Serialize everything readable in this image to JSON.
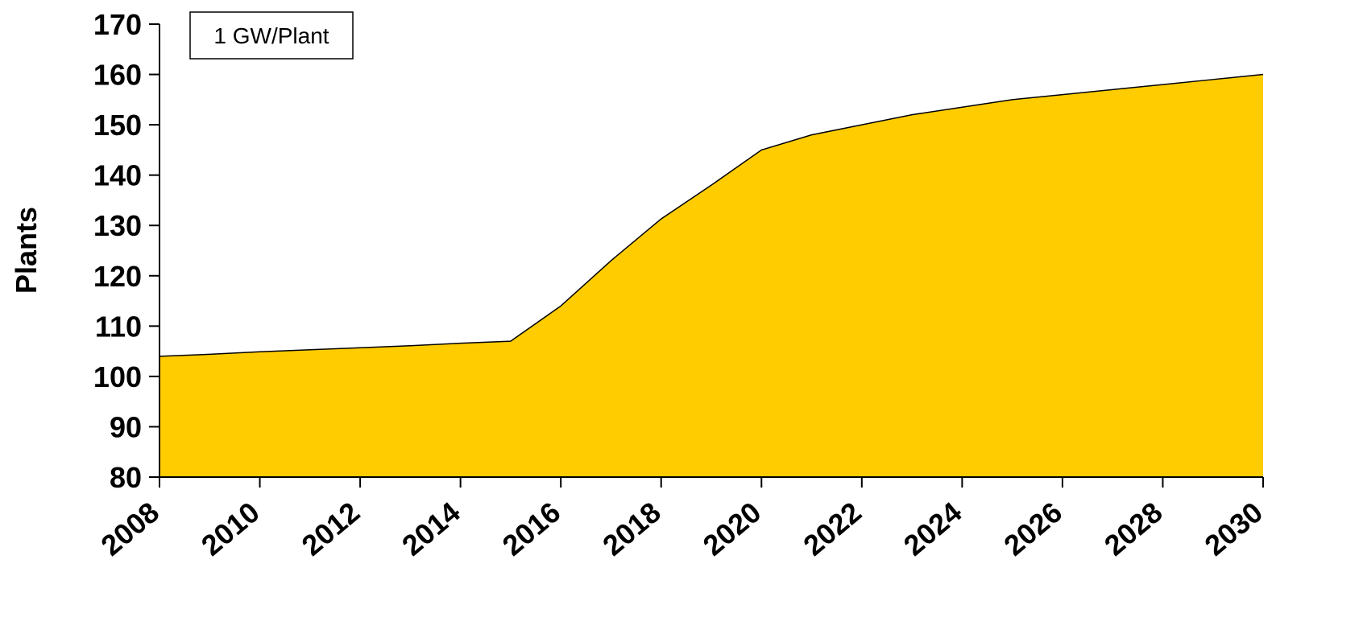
{
  "chart_data": {
    "type": "area",
    "y_label": "Plants",
    "annotation": "1 GW/Plant",
    "x": [
      2008,
      2009,
      2010,
      2011,
      2012,
      2013,
      2014,
      2015,
      2016,
      2017,
      2018,
      2019,
      2020,
      2021,
      2022,
      2023,
      2024,
      2025,
      2026,
      2027,
      2028,
      2029,
      2030
    ],
    "values": [
      104,
      104.4,
      104.9,
      105.3,
      105.7,
      106.1,
      106.6,
      107,
      114,
      123,
      131.3,
      138,
      145,
      148,
      150,
      152,
      153.5,
      155,
      156,
      157,
      158,
      159,
      160
    ],
    "color": "#ffcc00",
    "xlim": [
      2008,
      2030
    ],
    "xticks": [
      2008,
      2010,
      2012,
      2014,
      2016,
      2018,
      2020,
      2022,
      2024,
      2026,
      2028,
      2030
    ],
    "ylim": [
      80,
      170
    ],
    "yticks": [
      80,
      90,
      100,
      110,
      120,
      130,
      140,
      150,
      160,
      170
    ]
  }
}
